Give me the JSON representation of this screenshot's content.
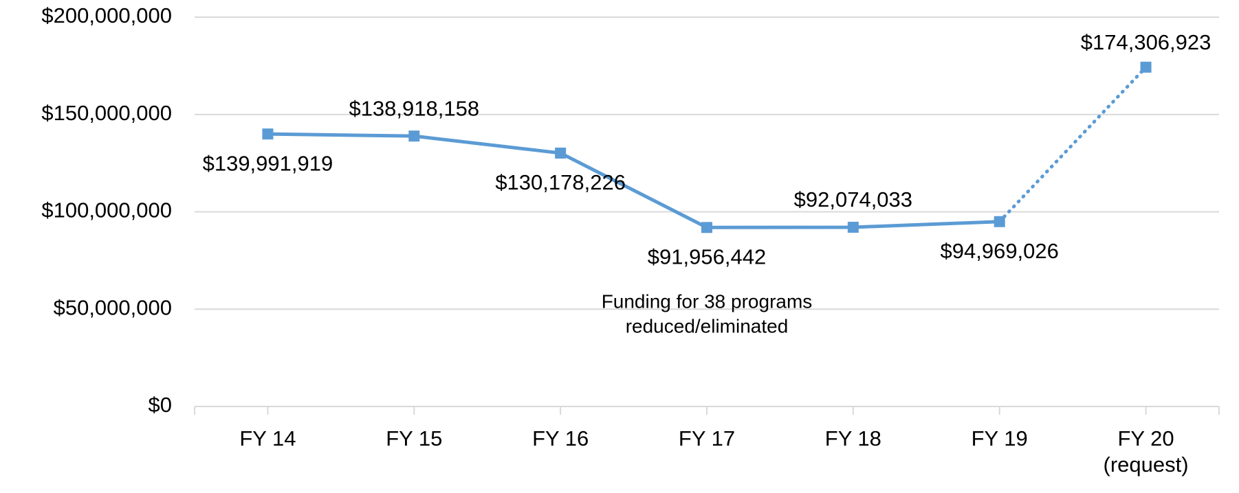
{
  "chart_data": {
    "type": "line",
    "categories": [
      "FY 14",
      "FY 15",
      "FY 16",
      "FY 17",
      "FY 18",
      "FY 19",
      "FY 20 (request)"
    ],
    "series": [
      {
        "color": "#5b9bd5",
        "values": [
          139991919,
          138918158,
          130178226,
          91956442,
          92074033,
          94969026,
          174306923
        ],
        "value_labels": [
          "$139,991,919",
          "$138,918,158",
          "$130,178,226",
          "$91,956,442",
          "$92,074,033",
          "$94,969,026",
          "$174,306,923"
        ],
        "segment_styles": [
          "solid",
          "solid",
          "solid",
          "solid",
          "solid",
          "dotted"
        ]
      }
    ],
    "ylim": [
      0,
      200000000
    ],
    "yticks": [
      {
        "value": 0,
        "label": "$0"
      },
      {
        "value": 50000000,
        "label": "$50,000,000"
      },
      {
        "value": 100000000,
        "label": "$100,000,000"
      },
      {
        "value": 150000000,
        "label": "$150,000,000"
      },
      {
        "value": 200000000,
        "label": "$200,000,000"
      }
    ],
    "grid": true,
    "annotation_lines": [
      "Funding for 38 programs",
      "reduced/eliminated"
    ]
  }
}
